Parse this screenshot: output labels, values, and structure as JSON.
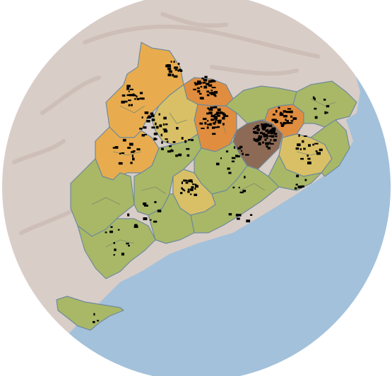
{
  "map": {
    "colors": {
      "sea": "#a3c1db",
      "relief": "#d9cdc8",
      "relief_shadow": "#c6b4ad",
      "low": "#a8b867",
      "medium": "#d9c066",
      "high": "#e8ac4f",
      "very_high": "#e08d3f",
      "highest": "#8c6a55",
      "points": "#000000"
    },
    "regions": [
      {
        "id": "r1",
        "class": "high"
      },
      {
        "id": "r2",
        "class": "high"
      },
      {
        "id": "r3",
        "class": "very_high"
      },
      {
        "id": "r4",
        "class": "very_high"
      },
      {
        "id": "r5",
        "class": "very_high"
      },
      {
        "id": "r6",
        "class": "highest"
      },
      {
        "id": "r7",
        "class": "medium"
      },
      {
        "id": "r8",
        "class": "medium"
      },
      {
        "id": "r9",
        "class": "medium"
      },
      {
        "id": "r10",
        "class": "low"
      },
      {
        "id": "r11",
        "class": "low"
      },
      {
        "id": "r12",
        "class": "low"
      },
      {
        "id": "r13",
        "class": "low"
      },
      {
        "id": "r14",
        "class": "low"
      },
      {
        "id": "r15",
        "class": "low"
      },
      {
        "id": "r16",
        "class": "low"
      },
      {
        "id": "r17",
        "class": "low"
      },
      {
        "id": "r18",
        "class": "low"
      }
    ]
  }
}
